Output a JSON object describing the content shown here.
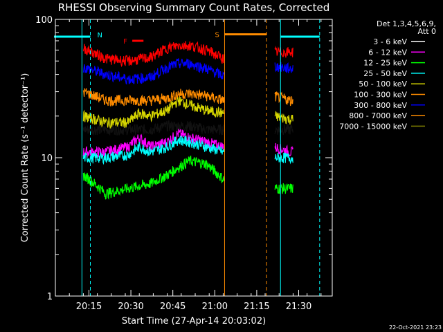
{
  "chart_data": {
    "type": "line",
    "title": "RHESSI Observing Summary Count Rates, Corrected",
    "xlabel": "Start Time (27-Apr-14 20:03:02)",
    "ylabel": "Corrected Count Rate (s⁻¹ detector⁻¹)",
    "yscale": "log",
    "ylim": [
      1,
      100
    ],
    "y_ticks": [
      {
        "value": 1,
        "label": "1"
      },
      {
        "value": 10,
        "label": "10"
      },
      {
        "value": 100,
        "label": "100"
      }
    ],
    "xlim_minutes": [
      0,
      99
    ],
    "x_ticks": [
      {
        "minute": 12,
        "label": "20:15"
      },
      {
        "minute": 27,
        "label": "20:30"
      },
      {
        "minute": 42,
        "label": "20:45"
      },
      {
        "minute": 57,
        "label": "21:00"
      },
      {
        "minute": 72,
        "label": "21:15"
      },
      {
        "minute": 87,
        "label": "21:30"
      }
    ],
    "grid": false,
    "legend_header": [
      "Det 1,3,4,5,6,9,",
      "Att 0"
    ],
    "legend_position": "top-right",
    "footer": "22-Oct-2021 23:23",
    "series": [
      {
        "name": "3 - 6 keV",
        "color": "#000000",
        "swatch": "#ffffff",
        "x": [
          10,
          18,
          26,
          34,
          40,
          44,
          48,
          54,
          60,
          78,
          84
        ],
        "values": [
          16,
          16,
          16,
          16,
          17,
          17,
          17,
          16,
          16,
          16,
          16
        ]
      },
      {
        "name": "6 - 12 keV",
        "color": "#ff00ff",
        "x": [
          10,
          18,
          26,
          30,
          34,
          40,
          44,
          48,
          54,
          60,
          78,
          84
        ],
        "values": [
          11,
          11,
          12,
          14,
          12,
          13,
          15,
          14,
          13,
          12,
          12,
          11
        ]
      },
      {
        "name": "12 - 25 keV",
        "color": "#00ff00",
        "x": [
          10,
          18,
          26,
          34,
          40,
          44,
          48,
          54,
          60,
          78,
          84
        ],
        "values": [
          7.5,
          5.5,
          6,
          6.5,
          7.5,
          8.5,
          9.5,
          9,
          7,
          6,
          6
        ]
      },
      {
        "name": "25 - 50 keV",
        "color": "#00ffff",
        "x": [
          10,
          18,
          26,
          30,
          34,
          40,
          44,
          48,
          54,
          60,
          78,
          84
        ],
        "values": [
          10,
          10,
          10.5,
          12,
          11,
          12,
          13.5,
          13,
          12,
          11,
          10,
          10
        ]
      },
      {
        "name": "50 - 100 keV",
        "color": "#d6d600",
        "x": [
          10,
          18,
          26,
          30,
          34,
          40,
          44,
          48,
          54,
          60,
          78,
          84
        ],
        "values": [
          20,
          18,
          18,
          21,
          20,
          22,
          26,
          24,
          22,
          21,
          20,
          19
        ]
      },
      {
        "name": "100 - 300 keV",
        "color": "#ff8c00",
        "x": [
          10,
          18,
          26,
          34,
          40,
          44,
          48,
          54,
          60,
          78,
          84
        ],
        "values": [
          30,
          26,
          26,
          26,
          27,
          29,
          29,
          28,
          26,
          28,
          26
        ]
      },
      {
        "name": "300 - 800 keV",
        "color": "#0000ff",
        "x": [
          10,
          18,
          26,
          34,
          40,
          44,
          48,
          54,
          60,
          78,
          84
        ],
        "values": [
          45,
          40,
          37,
          38,
          45,
          48,
          48,
          44,
          39,
          46,
          44
        ]
      },
      {
        "name": "800 - 7000 keV",
        "color": "#ff0000",
        "legend_color": "#ff8c00",
        "x": [
          10,
          18,
          26,
          34,
          40,
          44,
          48,
          54,
          60,
          78,
          84
        ],
        "values": [
          62,
          52,
          50,
          53,
          62,
          65,
          65,
          60,
          52,
          58,
          58
        ]
      },
      {
        "name": "7000 - 15000 keV",
        "color": "#808000",
        "x": [],
        "values": []
      }
    ],
    "annotations": [
      {
        "letter": "N",
        "color": "#00ffff",
        "solid_line_minutes": [
          -0.5,
          10
        ],
        "dashed_verticals_minutes": [
          12.5,
          94.5
        ],
        "solid_verticals_minutes": [
          9.5,
          80.5
        ],
        "bar_minutes": [
          [
            -0.5,
            12.5
          ],
          [
            80.5,
            94.5
          ]
        ],
        "level": 75
      },
      {
        "letter": "F",
        "color": "#ff0000",
        "bar_minutes": [
          27.5,
          31.5
        ],
        "level": 70
      },
      {
        "letter": "S",
        "color": "#ff8c00",
        "bar_minutes": [
          60.5,
          75.5
        ],
        "dashed_vertical_minute": 75.5,
        "solid_vertical_minute": 60.5,
        "level": 78
      }
    ]
  }
}
